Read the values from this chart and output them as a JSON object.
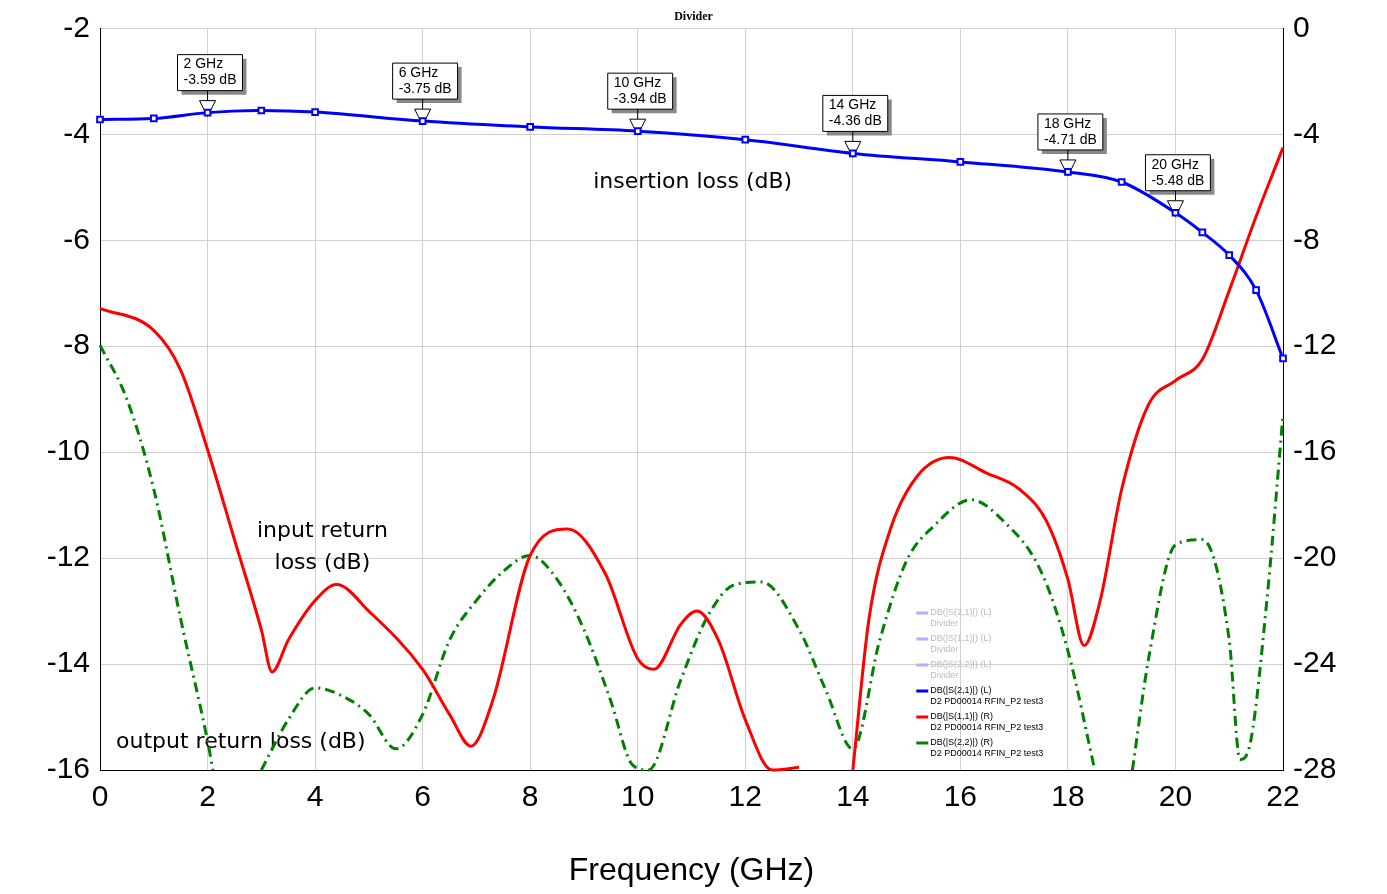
{
  "chart_data": {
    "type": "line",
    "title": "Divider",
    "xlabel": "Frequency (GHz)",
    "xlim": [
      0,
      22
    ],
    "xticks": [
      0,
      2,
      4,
      6,
      8,
      10,
      12,
      14,
      16,
      18,
      20,
      22
    ],
    "ylim": [
      -16,
      -2
    ],
    "yticks": [
      -16,
      -14,
      -12,
      -10,
      -8,
      -6,
      -4,
      -2
    ],
    "y2lim": [
      -28,
      0
    ],
    "y2ticks": [
      -28,
      -24,
      -20,
      -16,
      -12,
      -8,
      -4,
      0
    ],
    "grid": true,
    "legend": "bottom",
    "series": [
      {
        "name": "DB(|S(2,1)|) (L)\nD2 PD00014 RFIN_P2 test3",
        "color": "#0000ff",
        "marker": "square",
        "x": [
          0,
          1,
          2,
          3,
          4,
          6,
          8,
          10,
          12,
          14,
          16,
          18,
          19,
          20,
          20.5,
          21,
          21.5,
          22
        ],
        "values": [
          -3.72,
          -3.7,
          -3.59,
          -3.55,
          -3.58,
          -3.75,
          -3.86,
          -3.94,
          -4.1,
          -4.36,
          -4.52,
          -4.71,
          -4.9,
          -5.48,
          -5.85,
          -6.28,
          -6.94,
          -8.23
        ]
      },
      {
        "name": "DB(|S(1,1)|) (R)\nD2 PD00014 RFIN_P2 test3",
        "color": "#ff0000",
        "axis": "y2",
        "x": [
          0,
          1,
          1.5,
          2,
          2.5,
          3,
          3.2,
          3.5,
          4,
          4.4,
          5,
          6,
          6.5,
          6.9,
          7.3,
          8,
          8.7,
          9.4,
          10,
          10.3,
          10.8,
          11.1,
          11.5,
          12,
          12.5,
          13,
          13.5,
          14,
          14.3,
          14.7,
          15.2,
          15.8,
          16.5,
          17.1,
          17.6,
          18,
          18.3,
          18.6,
          19,
          19.5,
          20,
          20.5,
          21,
          21.5,
          22
        ],
        "values": [
          -10.57,
          -11.4,
          -12.9,
          -15.9,
          -19.3,
          -22.7,
          -24.3,
          -23.1,
          -21.6,
          -21,
          -22,
          -24.2,
          -25.9,
          -27.1,
          -25.4,
          -19.9,
          -18.9,
          -20.6,
          -23.8,
          -24.2,
          -22.5,
          -22,
          -23.1,
          -26.1,
          -28,
          -27.9,
          null,
          -28,
          -22.3,
          -18.9,
          -16.9,
          -16.2,
          -16.8,
          -17.4,
          -18.6,
          -20.8,
          -23.3,
          -21.6,
          -17.4,
          -14.2,
          -13.3,
          -12.5,
          -9.9,
          -7.1,
          -4.5
        ]
      },
      {
        "name": "DB(|S(2,2)|) (R)\nD2 PD00014 RFIN_P2 test3",
        "color": "#008000",
        "axis": "y2",
        "line_style": "dashdot",
        "x": [
          0,
          0.5,
          1,
          1.5,
          2,
          2.1,
          2.5,
          3,
          3.5,
          4,
          4.5,
          5,
          5.5,
          6,
          6.5,
          7,
          7.5,
          8,
          8.5,
          9,
          9.5,
          9.9,
          10.2,
          10.8,
          11.3,
          11.8,
          12.3,
          13,
          13.5,
          14,
          14.5,
          15,
          15.5,
          16.2,
          16.8,
          17.5,
          18,
          18.5,
          18.8,
          19.2,
          19.5,
          20,
          20.5,
          21,
          21.2,
          21.4,
          21.7,
          22
        ],
        "values": [
          -11.96,
          -14,
          -17.4,
          -22.3,
          -26.9,
          -28,
          null,
          -28,
          -26.1,
          -24.9,
          -25.2,
          -25.9,
          -27.2,
          -25.9,
          -23.1,
          -21.6,
          -20.5,
          -19.9,
          -20.8,
          -22.7,
          -25.4,
          -27.8,
          -28,
          -24.6,
          -22.2,
          -21,
          -20.9,
          -22.7,
          -25,
          -27.2,
          -23.1,
          -20.1,
          -18.8,
          -17.8,
          -18.6,
          -20.5,
          -23.5,
          -28,
          null,
          -28,
          -23.8,
          -19.5,
          -19.3,
          -23.1,
          -27.6,
          -26.9,
          -21.6,
          -14.6
        ]
      }
    ],
    "annotations": [
      {
        "text": "2 GHz\n-3.59 dB",
        "x": 2,
        "y": -3.59
      },
      {
        "text": "6 GHz\n-3.75 dB",
        "x": 6,
        "y": -3.75
      },
      {
        "text": "10 GHz\n-3.94 dB",
        "x": 10,
        "y": -3.94
      },
      {
        "text": "14 GHz\n-4.36 dB",
        "x": 14,
        "y": -4.36
      },
      {
        "text": "18 GHz\n-4.71 dB",
        "x": 18,
        "y": -4.71
      },
      {
        "text": "20 GHz\n-5.48 dB",
        "x": 20,
        "y": -5.48
      },
      "insertion loss (dB)",
      "input return\nloss (dB)",
      "output return loss (dB)",
      "DB(|S(2,1)|) (L)\nDivider",
      "DB(|S(1,1)|) (L)\nDivider",
      "DB(|S(2,2)|) (L)\nDivider"
    ]
  }
}
